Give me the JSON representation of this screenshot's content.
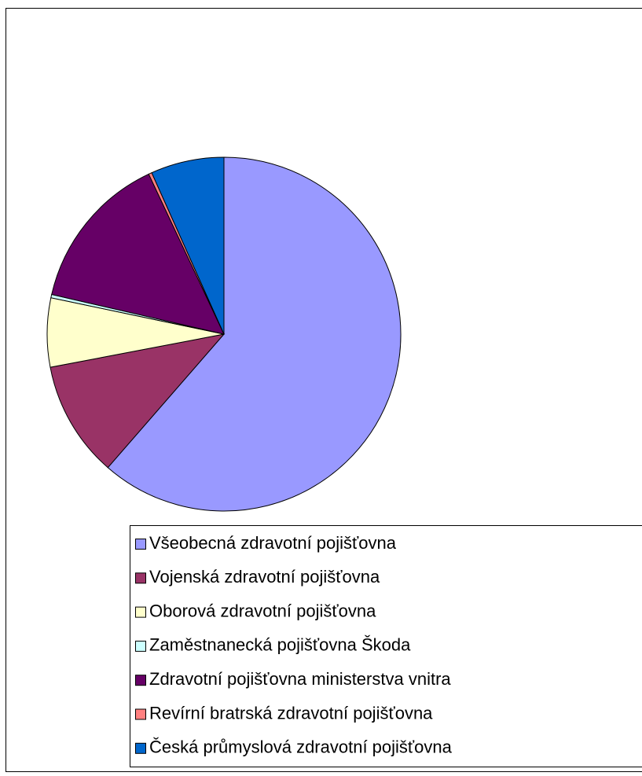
{
  "chart_data": {
    "type": "pie",
    "categories": [
      "Všeobecná zdravotní pojišťovna",
      "Vojenská zdravotní pojišťovna",
      "Oborová zdravotní pojišťovna",
      "Zaměstnanecká pojišťovna Škoda",
      "Zdravotní pojišťovna ministerstva vnitra",
      "Revírní bratrská zdravotní pojišťovna",
      "Česká průmyslová zdravotní pojišťovna"
    ],
    "values": [
      61.4,
      10.6,
      6.3,
      0.3,
      14.4,
      0.3,
      6.7
    ],
    "colors": [
      "#9999ff",
      "#993366",
      "#ffffcc",
      "#ccffff",
      "#660066",
      "#ff8080",
      "#0066cc"
    ],
    "legend": "bottom"
  }
}
